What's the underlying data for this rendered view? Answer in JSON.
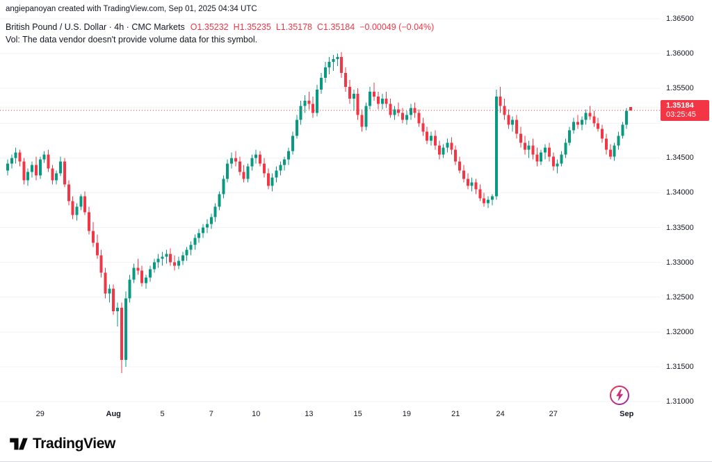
{
  "attribution": "angiepanoyan created with TradingView.com, Sep 01, 2025 04:34 UTC",
  "legend": {
    "symbol_title": "British Pound / U.S. Dollar · 4h · CMC Markets",
    "ohlc": {
      "o": "O1.35232",
      "h": "H1.35235",
      "l": "L1.35178",
      "c": "C1.35184",
      "chg": "−0.00049 (−0.04%)"
    },
    "vol_text": "Vol: The data vendor doesn't provide volume data for this symbol."
  },
  "price_scale": {
    "ticks": [
      "1.36500",
      "1.36000",
      "1.35500",
      "1.34500",
      "1.34000",
      "1.33500",
      "1.33000",
      "1.32500",
      "1.32000",
      "1.31500",
      "1.31000"
    ],
    "badge": {
      "price": "1.35184",
      "countdown": "03:25:45"
    }
  },
  "time_scale": {
    "labels": [
      {
        "text": "29",
        "index": 8
      },
      {
        "text": "Aug",
        "index": 26,
        "bold": true
      },
      {
        "text": "5",
        "index": 38
      },
      {
        "text": "7",
        "index": 50
      },
      {
        "text": "10",
        "index": 61
      },
      {
        "text": "13",
        "index": 74
      },
      {
        "text": "15",
        "index": 86
      },
      {
        "text": "19",
        "index": 98
      },
      {
        "text": "21",
        "index": 110
      },
      {
        "text": "24",
        "index": 121
      },
      {
        "text": "27",
        "index": 134
      },
      {
        "text": "Sep",
        "index": 152,
        "bold": true
      }
    ]
  },
  "footer": {
    "brand": "TradingView"
  },
  "colors": {
    "up": "#089981",
    "down": "#F23645",
    "grid": "#F0F3FA",
    "text": "#131722",
    "badge_bg": "#F23645",
    "icon_start": "#F23645",
    "icon_end": "#9C27B0"
  },
  "chart_data": {
    "type": "candlestick",
    "title": "British Pound / U.S. Dollar · 4h · CMC Markets",
    "interval": "4h",
    "legend_pos": "top-left",
    "grid": true,
    "current_price": 1.35184,
    "last_bar": {
      "open": 1.35232,
      "high": 1.35235,
      "low": 1.35178,
      "close": 1.35184,
      "change": -0.00049,
      "change_pct": -0.04
    },
    "axis_min": 1.3093,
    "axis_max": 1.3677,
    "grid_step": 0.005,
    "grid_min": 1.31,
    "grid_max": 1.365,
    "x_range": [
      "Jul 28",
      "Sep 1"
    ],
    "candles": [
      [
        1.3432,
        1.3448,
        1.3425,
        1.3442
      ],
      [
        1.3442,
        1.3455,
        1.3435,
        1.345
      ],
      [
        1.345,
        1.3465,
        1.3442,
        1.3458
      ],
      [
        1.3458,
        1.3462,
        1.3438,
        1.3445
      ],
      [
        1.3445,
        1.345,
        1.3412,
        1.3418
      ],
      [
        1.3418,
        1.3435,
        1.341,
        1.343
      ],
      [
        1.343,
        1.3445,
        1.3422,
        1.344
      ],
      [
        1.344,
        1.3452,
        1.3418,
        1.3425
      ],
      [
        1.3425,
        1.3452,
        1.342,
        1.3448
      ],
      [
        1.3448,
        1.346,
        1.3443,
        1.3455
      ],
      [
        1.3455,
        1.3462,
        1.343,
        1.3435
      ],
      [
        1.3435,
        1.344,
        1.3412,
        1.3418
      ],
      [
        1.3418,
        1.3432,
        1.3412,
        1.3428
      ],
      [
        1.3428,
        1.3452,
        1.3424,
        1.3445
      ],
      [
        1.3445,
        1.345,
        1.3408,
        1.3412
      ],
      [
        1.3412,
        1.3418,
        1.3382,
        1.3388
      ],
      [
        1.3388,
        1.3395,
        1.3362,
        1.3368
      ],
      [
        1.3368,
        1.3385,
        1.336,
        1.338
      ],
      [
        1.338,
        1.3398,
        1.3375,
        1.3395
      ],
      [
        1.3395,
        1.3402,
        1.3368,
        1.3372
      ],
      [
        1.3372,
        1.338,
        1.334,
        1.3345
      ],
      [
        1.3345,
        1.3358,
        1.3322,
        1.3328
      ],
      [
        1.3328,
        1.334,
        1.3305,
        1.331
      ],
      [
        1.331,
        1.3318,
        1.3278,
        1.3285
      ],
      [
        1.3285,
        1.3292,
        1.3248,
        1.3255
      ],
      [
        1.3255,
        1.3268,
        1.3242,
        1.3262
      ],
      [
        1.3262,
        1.3268,
        1.3225,
        1.323
      ],
      [
        1.323,
        1.3242,
        1.3208,
        1.3235
      ],
      [
        1.3235,
        1.3242,
        1.3141,
        1.316
      ],
      [
        1.316,
        1.3258,
        1.315,
        1.3248
      ],
      [
        1.3248,
        1.3282,
        1.3242,
        1.3275
      ],
      [
        1.3275,
        1.3298,
        1.327,
        1.3292
      ],
      [
        1.3292,
        1.3305,
        1.3282,
        1.3288
      ],
      [
        1.3288,
        1.3295,
        1.3265,
        1.327
      ],
      [
        1.327,
        1.3282,
        1.3262,
        1.3278
      ],
      [
        1.3278,
        1.3295,
        1.3272,
        1.329
      ],
      [
        1.329,
        1.3305,
        1.3285,
        1.33
      ],
      [
        1.33,
        1.3312,
        1.3292,
        1.3305
      ],
      [
        1.3305,
        1.3315,
        1.3295,
        1.3308
      ],
      [
        1.3308,
        1.3318,
        1.3298,
        1.3312
      ],
      [
        1.3312,
        1.332,
        1.3295,
        1.33
      ],
      [
        1.33,
        1.331,
        1.3288,
        1.3295
      ],
      [
        1.3295,
        1.3308,
        1.329,
        1.3302
      ],
      [
        1.3302,
        1.3315,
        1.3296,
        1.331
      ],
      [
        1.331,
        1.3322,
        1.3302,
        1.3318
      ],
      [
        1.3318,
        1.333,
        1.331,
        1.3325
      ],
      [
        1.3325,
        1.334,
        1.3318,
        1.3335
      ],
      [
        1.3335,
        1.3348,
        1.3328,
        1.3342
      ],
      [
        1.3342,
        1.3355,
        1.3335,
        1.335
      ],
      [
        1.335,
        1.3362,
        1.3342,
        1.3355
      ],
      [
        1.3355,
        1.337,
        1.3348,
        1.3365
      ],
      [
        1.3365,
        1.3385,
        1.3358,
        1.338
      ],
      [
        1.338,
        1.3402,
        1.3375,
        1.3398
      ],
      [
        1.3398,
        1.3425,
        1.3392,
        1.342
      ],
      [
        1.342,
        1.3448,
        1.3415,
        1.3442
      ],
      [
        1.3442,
        1.3458,
        1.3435,
        1.345
      ],
      [
        1.345,
        1.346,
        1.3438,
        1.3445
      ],
      [
        1.3445,
        1.3452,
        1.3425,
        1.343
      ],
      [
        1.343,
        1.344,
        1.3415,
        1.342
      ],
      [
        1.342,
        1.3442,
        1.3415,
        1.3438
      ],
      [
        1.3438,
        1.3455,
        1.3432,
        1.345
      ],
      [
        1.345,
        1.3462,
        1.3442,
        1.3455
      ],
      [
        1.3455,
        1.346,
        1.3438,
        1.3442
      ],
      [
        1.3442,
        1.345,
        1.3422,
        1.3428
      ],
      [
        1.3428,
        1.3435,
        1.3405,
        1.341
      ],
      [
        1.341,
        1.3428,
        1.3402,
        1.3422
      ],
      [
        1.3422,
        1.3438,
        1.3415,
        1.3432
      ],
      [
        1.3432,
        1.3445,
        1.3425,
        1.344
      ],
      [
        1.344,
        1.3452,
        1.3432,
        1.3448
      ],
      [
        1.3448,
        1.3465,
        1.344,
        1.346
      ],
      [
        1.346,
        1.3488,
        1.3455,
        1.3482
      ],
      [
        1.3482,
        1.3512,
        1.3478,
        1.3505
      ],
      [
        1.3505,
        1.3532,
        1.3498,
        1.3525
      ],
      [
        1.3525,
        1.354,
        1.3515,
        1.3532
      ],
      [
        1.3532,
        1.3545,
        1.352,
        1.3528
      ],
      [
        1.3528,
        1.3538,
        1.3508,
        1.3515
      ],
      [
        1.3515,
        1.3555,
        1.351,
        1.3548
      ],
      [
        1.3548,
        1.3572,
        1.3542,
        1.3565
      ],
      [
        1.3565,
        1.3588,
        1.3558,
        1.358
      ],
      [
        1.358,
        1.3595,
        1.357,
        1.3588
      ],
      [
        1.3588,
        1.3598,
        1.3575,
        1.3592
      ],
      [
        1.3592,
        1.36,
        1.3582,
        1.3595
      ],
      [
        1.3595,
        1.3602,
        1.3565,
        1.3572
      ],
      [
        1.3572,
        1.358,
        1.3545,
        1.3552
      ],
      [
        1.3552,
        1.3562,
        1.3528,
        1.3535
      ],
      [
        1.3535,
        1.3548,
        1.3518,
        1.3542
      ],
      [
        1.3542,
        1.355,
        1.3505,
        1.3512
      ],
      [
        1.3512,
        1.352,
        1.3488,
        1.3495
      ],
      [
        1.3495,
        1.353,
        1.349,
        1.3525
      ],
      [
        1.3525,
        1.3552,
        1.352,
        1.3545
      ],
      [
        1.3545,
        1.3558,
        1.3532,
        1.3538
      ],
      [
        1.3538,
        1.3545,
        1.352,
        1.3528
      ],
      [
        1.3528,
        1.3542,
        1.352,
        1.3535
      ],
      [
        1.3535,
        1.3545,
        1.3522,
        1.3528
      ],
      [
        1.3528,
        1.3535,
        1.3508,
        1.3512
      ],
      [
        1.3512,
        1.3525,
        1.3505,
        1.352
      ],
      [
        1.352,
        1.353,
        1.351,
        1.3515
      ],
      [
        1.3515,
        1.3522,
        1.35,
        1.3505
      ],
      [
        1.3505,
        1.3518,
        1.3498,
        1.3512
      ],
      [
        1.3512,
        1.3528,
        1.3505,
        1.3522
      ],
      [
        1.3522,
        1.353,
        1.3508,
        1.3515
      ],
      [
        1.3515,
        1.352,
        1.3495,
        1.35
      ],
      [
        1.35,
        1.3508,
        1.3482,
        1.3488
      ],
      [
        1.3488,
        1.3495,
        1.347,
        1.3475
      ],
      [
        1.3475,
        1.3488,
        1.3468,
        1.3482
      ],
      [
        1.3482,
        1.349,
        1.3462,
        1.3468
      ],
      [
        1.3468,
        1.3475,
        1.3448,
        1.3455
      ],
      [
        1.3455,
        1.347,
        1.345,
        1.3465
      ],
      [
        1.3465,
        1.3478,
        1.3458,
        1.3472
      ],
      [
        1.3472,
        1.348,
        1.3455,
        1.3462
      ],
      [
        1.3462,
        1.3468,
        1.344,
        1.3445
      ],
      [
        1.3445,
        1.3452,
        1.3428,
        1.3432
      ],
      [
        1.3432,
        1.344,
        1.3415,
        1.342
      ],
      [
        1.342,
        1.3428,
        1.3405,
        1.341
      ],
      [
        1.341,
        1.3422,
        1.3402,
        1.3415
      ],
      [
        1.3415,
        1.342,
        1.3398,
        1.3405
      ],
      [
        1.3405,
        1.3412,
        1.3388,
        1.3392
      ],
      [
        1.3392,
        1.34,
        1.338,
        1.3385
      ],
      [
        1.3385,
        1.3395,
        1.3378,
        1.339
      ],
      [
        1.339,
        1.3398,
        1.3382,
        1.3395
      ],
      [
        1.3395,
        1.3548,
        1.339,
        1.3538
      ],
      [
        1.3538,
        1.3552,
        1.3515,
        1.3525
      ],
      [
        1.3525,
        1.3535,
        1.3505,
        1.3512
      ],
      [
        1.3512,
        1.352,
        1.3492,
        1.3498
      ],
      [
        1.3498,
        1.351,
        1.3488,
        1.3505
      ],
      [
        1.3505,
        1.3512,
        1.3478,
        1.3485
      ],
      [
        1.3485,
        1.3495,
        1.3465,
        1.3472
      ],
      [
        1.3472,
        1.3482,
        1.3455,
        1.3462
      ],
      [
        1.3462,
        1.3475,
        1.345,
        1.3468
      ],
      [
        1.3468,
        1.3478,
        1.3448,
        1.3455
      ],
      [
        1.3455,
        1.3465,
        1.3438,
        1.3445
      ],
      [
        1.3445,
        1.3462,
        1.344,
        1.3458
      ],
      [
        1.3458,
        1.347,
        1.3448,
        1.3465
      ],
      [
        1.3465,
        1.3472,
        1.3445,
        1.3452
      ],
      [
        1.3452,
        1.3458,
        1.3432,
        1.3438
      ],
      [
        1.3438,
        1.3448,
        1.3428,
        1.3442
      ],
      [
        1.3442,
        1.346,
        1.3438,
        1.3455
      ],
      [
        1.3455,
        1.3478,
        1.345,
        1.3472
      ],
      [
        1.3472,
        1.3495,
        1.3468,
        1.349
      ],
      [
        1.349,
        1.3508,
        1.3485,
        1.3502
      ],
      [
        1.3502,
        1.3512,
        1.3492,
        1.3498
      ],
      [
        1.3498,
        1.351,
        1.349,
        1.3505
      ],
      [
        1.3505,
        1.352,
        1.3498,
        1.3515
      ],
      [
        1.3515,
        1.3525,
        1.3505,
        1.351
      ],
      [
        1.351,
        1.3518,
        1.3495,
        1.35
      ],
      [
        1.35,
        1.3508,
        1.3488,
        1.3492
      ],
      [
        1.3492,
        1.3498,
        1.3472,
        1.3478
      ],
      [
        1.3478,
        1.3485,
        1.3455,
        1.3462
      ],
      [
        1.3462,
        1.347,
        1.3448,
        1.3452
      ],
      [
        1.3452,
        1.3472,
        1.3446,
        1.3468
      ],
      [
        1.3468,
        1.3488,
        1.3462,
        1.3482
      ],
      [
        1.3482,
        1.3502,
        1.3478,
        1.3498
      ],
      [
        1.3498,
        1.3522,
        1.3492,
        1.3518
      ],
      [
        1.35232,
        1.35235,
        1.35178,
        1.35184
      ]
    ]
  }
}
